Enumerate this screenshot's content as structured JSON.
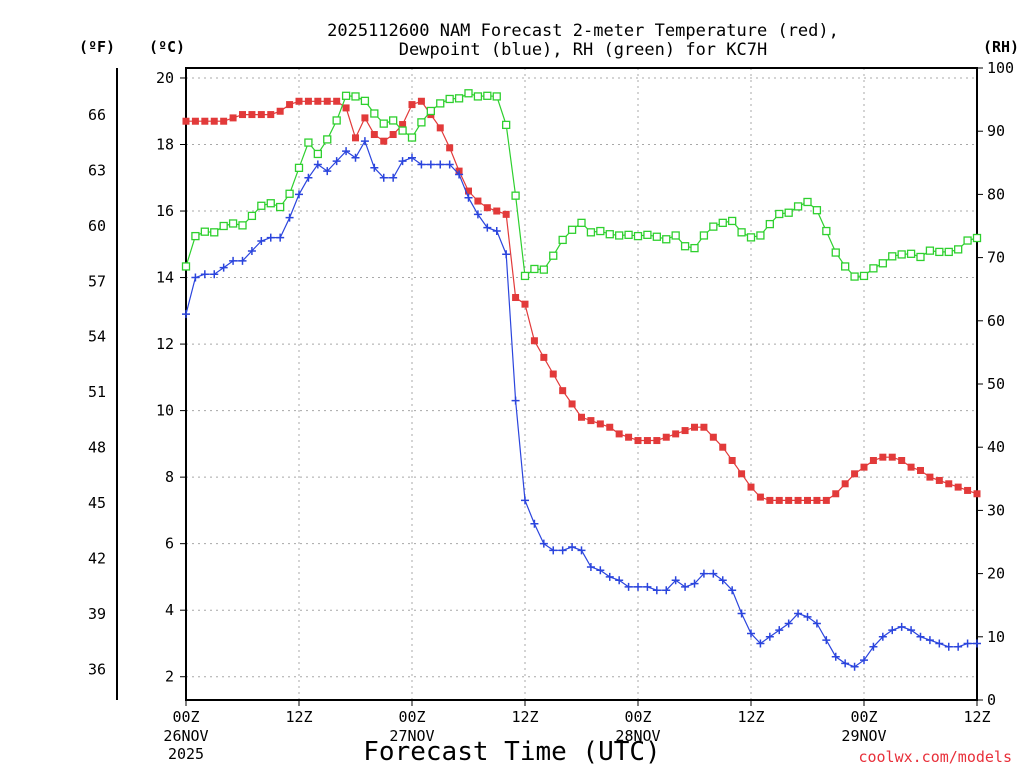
{
  "chart_data": {
    "type": "line",
    "title": "2025112600 NAM Forecast 2-meter Temperature (red),",
    "title_line2": "Dewpoint (blue), RH (green) for KC7H",
    "xlabel": "Forecast Time (UTC)",
    "credit": "coolwx.com/models",
    "units": {
      "fahrenheit": "(ºF)",
      "celsius": "(ºC)",
      "rh": "(RH)"
    },
    "x_range_hours": [
      0,
      84
    ],
    "x_ticks": [
      {
        "hour": 0,
        "label": "00Z",
        "sub1": "26NOV",
        "sub2": "2025"
      },
      {
        "hour": 12,
        "label": "12Z",
        "sub1": "",
        "sub2": ""
      },
      {
        "hour": 24,
        "label": "00Z",
        "sub1": "27NOV",
        "sub2": ""
      },
      {
        "hour": 36,
        "label": "12Z",
        "sub1": "",
        "sub2": ""
      },
      {
        "hour": 48,
        "label": "00Z",
        "sub1": "28NOV",
        "sub2": ""
      },
      {
        "hour": 60,
        "label": "12Z",
        "sub1": "",
        "sub2": ""
      },
      {
        "hour": 72,
        "label": "00Z",
        "sub1": "29NOV",
        "sub2": ""
      },
      {
        "hour": 84,
        "label": "12Z",
        "sub1": "",
        "sub2": ""
      }
    ],
    "y_celsius": {
      "range": [
        1.3,
        20.3
      ],
      "ticks": [
        "2",
        "4",
        "6",
        "8",
        "10",
        "12",
        "14",
        "16",
        "18",
        "20"
      ]
    },
    "y_fahrenheit": {
      "ticks": [
        "36",
        "39",
        "42",
        "45",
        "48",
        "51",
        "54",
        "57",
        "60",
        "63",
        "66"
      ]
    },
    "y_rh": {
      "range": [
        0,
        100
      ],
      "ticks": [
        "0",
        "10",
        "20",
        "30",
        "40",
        "50",
        "60",
        "70",
        "80",
        "90",
        "100"
      ]
    },
    "series": [
      {
        "name": "2-meter Temperature",
        "color": "#e23a3a",
        "marker": "filled-square",
        "axis": "celsius",
        "values": [
          18.7,
          18.7,
          18.7,
          18.7,
          18.7,
          18.8,
          18.9,
          18.9,
          18.9,
          18.9,
          19.0,
          19.2,
          19.3,
          19.3,
          19.3,
          19.3,
          19.3,
          19.1,
          18.2,
          18.8,
          18.3,
          18.1,
          18.3,
          18.6,
          19.2,
          19.3,
          18.9,
          18.5,
          17.9,
          17.2,
          16.6,
          16.3,
          16.1,
          16.0,
          15.9,
          13.4,
          13.2,
          12.1,
          11.6,
          11.1,
          10.6,
          10.2,
          9.8,
          9.7,
          9.6,
          9.5,
          9.3,
          9.2,
          9.1,
          9.1,
          9.1,
          9.2,
          9.3,
          9.4,
          9.5,
          9.5,
          9.2,
          8.9,
          8.5,
          8.1,
          7.7,
          7.4,
          7.3,
          7.3,
          7.3,
          7.3,
          7.3,
          7.3,
          7.3,
          7.5,
          7.8,
          8.1,
          8.3,
          8.5,
          8.6,
          8.6,
          8.5,
          8.3,
          8.2,
          8.0,
          7.9,
          7.8,
          7.7,
          7.6,
          7.5
        ]
      },
      {
        "name": "Dewpoint",
        "color": "#2b45dd",
        "marker": "plus",
        "axis": "celsius",
        "values": [
          12.9,
          14.0,
          14.1,
          14.1,
          14.3,
          14.5,
          14.5,
          14.8,
          15.1,
          15.2,
          15.2,
          15.8,
          16.5,
          17.0,
          17.4,
          17.2,
          17.5,
          17.8,
          17.6,
          18.1,
          17.3,
          17.0,
          17.0,
          17.5,
          17.6,
          17.4,
          17.4,
          17.4,
          17.4,
          17.1,
          16.4,
          15.9,
          15.5,
          15.4,
          14.7,
          10.3,
          7.3,
          6.6,
          6.0,
          5.8,
          5.8,
          5.9,
          5.8,
          5.3,
          5.2,
          5.0,
          4.9,
          4.7,
          4.7,
          4.7,
          4.6,
          4.6,
          4.9,
          4.7,
          4.8,
          5.1,
          5.1,
          4.9,
          4.6,
          3.9,
          3.3,
          3.0,
          3.2,
          3.4,
          3.6,
          3.9,
          3.8,
          3.6,
          3.1,
          2.6,
          2.4,
          2.3,
          2.5,
          2.9,
          3.2,
          3.4,
          3.5,
          3.4,
          3.2,
          3.1,
          3.0,
          2.9,
          2.9,
          3.0,
          3.0
        ]
      },
      {
        "name": "RH",
        "color": "#2ed02e",
        "marker": "open-square",
        "axis": "rh",
        "values": [
          68.6,
          73.4,
          74.1,
          74.0,
          75.0,
          75.4,
          75.1,
          76.6,
          78.2,
          78.6,
          78.0,
          80.1,
          84.2,
          88.2,
          86.4,
          88.7,
          91.7,
          95.6,
          95.5,
          94.8,
          92.8,
          91.2,
          91.7,
          90.1,
          89.0,
          91.4,
          93.2,
          94.4,
          95.1,
          95.2,
          96.0,
          95.5,
          95.6,
          95.5,
          91.0,
          79.8,
          67.1,
          68.2,
          68.1,
          70.3,
          72.8,
          74.4,
          75.5,
          74.0,
          74.2,
          73.7,
          73.5,
          73.6,
          73.4,
          73.6,
          73.3,
          72.9,
          73.5,
          71.8,
          71.5,
          73.5,
          74.9,
          75.5,
          75.8,
          74.0,
          73.2,
          73.5,
          75.3,
          76.9,
          77.1,
          78.1,
          78.8,
          77.5,
          74.2,
          70.8,
          68.6,
          67.0,
          67.1,
          68.3,
          69.1,
          70.2,
          70.5,
          70.6,
          70.1,
          71.1,
          70.9,
          70.9,
          71.3,
          72.7,
          73.1
        ]
      }
    ]
  }
}
